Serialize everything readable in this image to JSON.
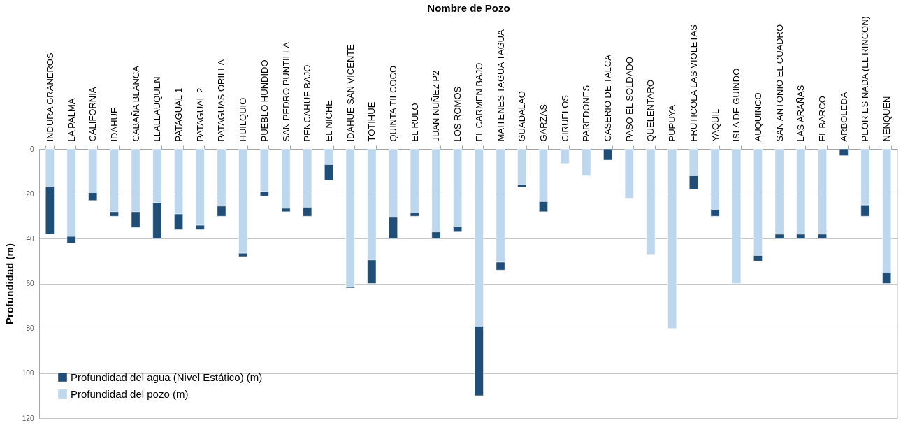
{
  "chart_data": {
    "type": "bar",
    "stacked": true,
    "xlabel": "Nombre de Pozo",
    "ylabel": "Profundidad (m)",
    "categories": [
      "INDURA GRANEROS",
      "LA PALMA",
      "CALIFORNIA",
      "IDAHUE",
      "CABAÑA BLANCA",
      "LLALLAUQUEN",
      "PATAGUAL 1",
      "PATAGUAL 2",
      "PATAGUAS ORILLA",
      "HUILQUIO",
      "PUEBLO HUNDIDO",
      "SAN PEDRO PUNTILLA",
      "PENCAHUE BAJO",
      "EL NICHE",
      "IDAHUE SAN VICENTE",
      "TOTIHUE",
      "QUINTA TILCOCO",
      "EL RULO",
      "JUAN NUÑEZ P2",
      "LOS ROMOS",
      "EL CARMEN BAJO",
      "MAITENES TAGUA TAGUA",
      "GUADALAO",
      "GARZAS",
      "CIRUELOS",
      "PAREDONES",
      "CASERIO DE TALCA",
      "PASO EL SOLDADO",
      "QUELENTARO",
      "PUPUYA",
      "FRUTICOLA LAS VIOLETAS",
      "YAQUIL",
      "ISLA DE GUINDO",
      "AUQUINCO",
      "SAN ANTONIO EL CUADRO",
      "LAS ARAÑAS",
      "EL BARCO",
      "ARBOLEDA",
      "PEOR ES NADA (EL RINCON)",
      "NENQUEN"
    ],
    "series": [
      {
        "name": "Profundidad del pozo (m)",
        "color": "#bdd7ee",
        "values": [
          17,
          39,
          19.5,
          28,
          28,
          24,
          29,
          34,
          25.5,
          46.5,
          19,
          26.5,
          26,
          7,
          61.5,
          49.5,
          30.5,
          28.5,
          37,
          34.5,
          79,
          50.5,
          16,
          23.5,
          6.5,
          12,
          null,
          22,
          47,
          80,
          12,
          27,
          60,
          47.5,
          38,
          38,
          38,
          null,
          25,
          55
        ]
      },
      {
        "name": "Profundidad del agua (Nivel Estático) (m)",
        "color": "#1f4e79",
        "values": [
          21,
          3,
          3.5,
          2,
          7,
          16,
          7,
          2,
          4.5,
          1.5,
          2,
          1.5,
          4,
          7,
          0.5,
          10.5,
          9.5,
          1.5,
          3,
          2.5,
          31,
          3.5,
          1,
          4.5,
          null,
          null,
          5,
          null,
          null,
          null,
          6,
          3,
          null,
          2.5,
          2,
          2,
          2,
          3,
          5,
          5
        ]
      }
    ],
    "ylim": [
      120,
      0
    ],
    "yticks": [
      0,
      20,
      40,
      60,
      80,
      100,
      120
    ],
    "grid": "y",
    "legend": "bottom left"
  }
}
